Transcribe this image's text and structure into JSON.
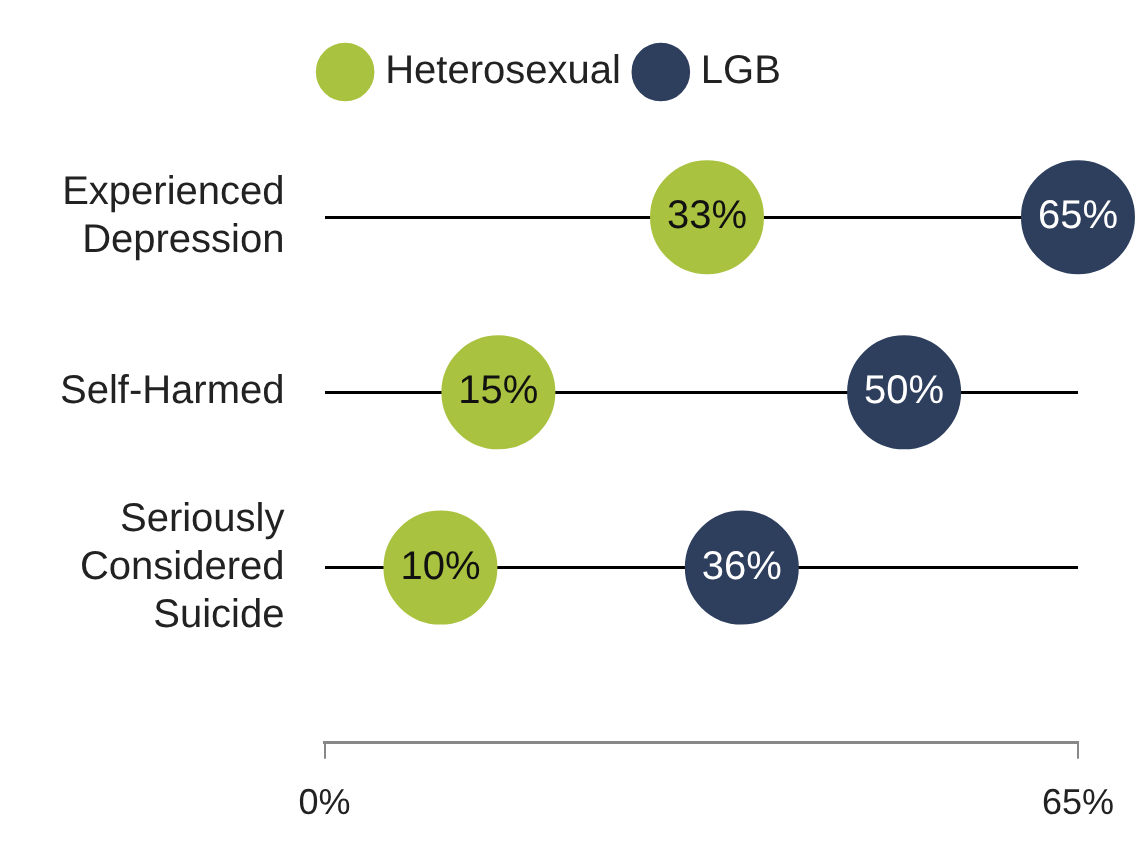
{
  "chart_data": {
    "type": "scatter",
    "orientation": "horizontal",
    "categories": [
      "Experienced Depression",
      "Self-Harmed",
      "Seriously Considered Suicide"
    ],
    "series": [
      {
        "name": "Heterosexual",
        "color": "#a9c23f",
        "values": [
          33,
          15,
          10
        ],
        "value_labels": [
          "33%",
          "15%",
          "10%"
        ]
      },
      {
        "name": "LGB",
        "color": "#2e3f5e",
        "values": [
          65,
          50,
          36
        ],
        "value_labels": [
          "65%",
          "50%",
          "36%"
        ]
      }
    ],
    "xlim": [
      0,
      65
    ],
    "xticks": [
      {
        "value": 0,
        "label": "0%"
      },
      {
        "value": 65,
        "label": "65%"
      }
    ],
    "grid": "y",
    "legend": "top",
    "marker": "circle"
  }
}
